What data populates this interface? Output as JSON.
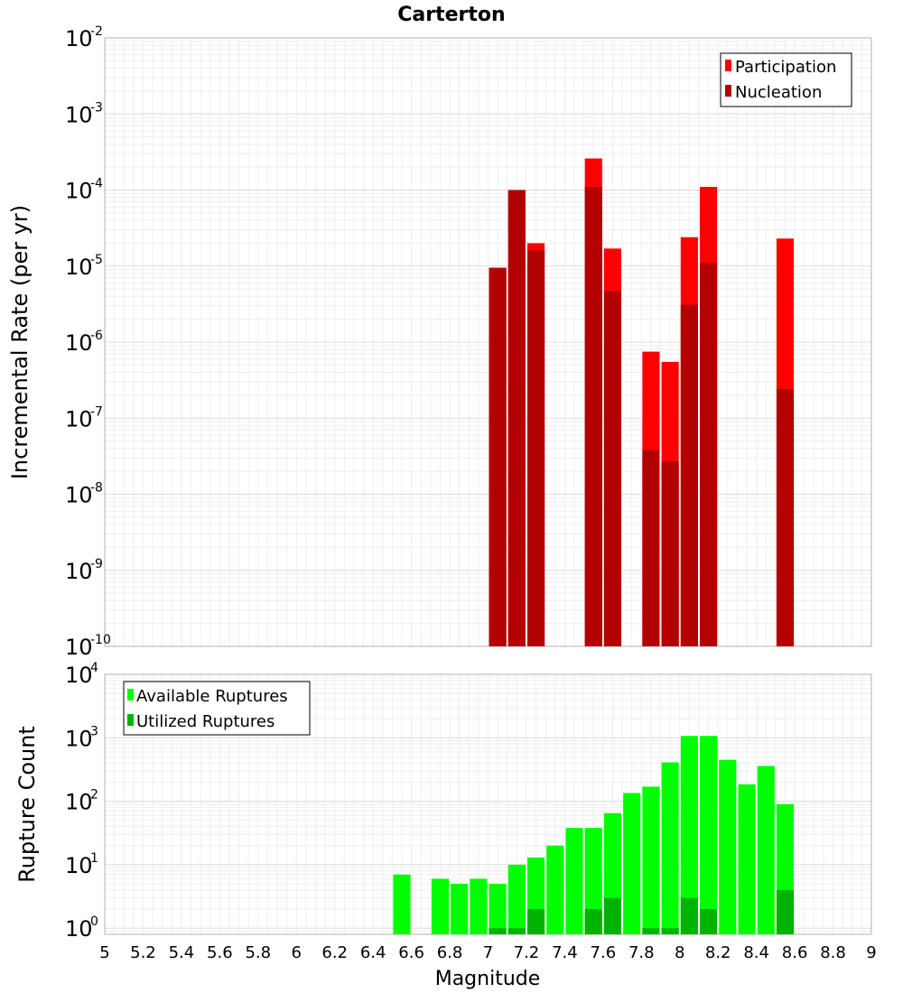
{
  "chart_data": [
    {
      "type": "bar",
      "title": "Carterton",
      "ylabel": "Incremental Rate (per yr)",
      "xlabel": "",
      "xlim": [
        5,
        9
      ],
      "ylim": [
        1e-10,
        0.01
      ],
      "yscale": "log",
      "grid": true,
      "legend_position": "top-right",
      "yticks": [
        {
          "base": "10",
          "exp": "-10",
          "value": 1e-10
        },
        {
          "base": "10",
          "exp": "-9",
          "value": 1e-09
        },
        {
          "base": "10",
          "exp": "-8",
          "value": 1e-08
        },
        {
          "base": "10",
          "exp": "-7",
          "value": 1e-07
        },
        {
          "base": "10",
          "exp": "-6",
          "value": 1e-06
        },
        {
          "base": "10",
          "exp": "-5",
          "value": 1e-05
        },
        {
          "base": "10",
          "exp": "-4",
          "value": 0.0001
        },
        {
          "base": "10",
          "exp": "-3",
          "value": 0.001
        },
        {
          "base": "10",
          "exp": "-2",
          "value": 0.01
        }
      ],
      "series": [
        {
          "name": "Participation",
          "color": "#ff0000",
          "points": [
            {
              "x": 7.05,
              "y": 9.5e-06
            },
            {
              "x": 7.15,
              "y": 0.0001
            },
            {
              "x": 7.25,
              "y": 2e-05
            },
            {
              "x": 7.55,
              "y": 0.00026
            },
            {
              "x": 7.65,
              "y": 1.7e-05
            },
            {
              "x": 7.85,
              "y": 7.5e-07
            },
            {
              "x": 7.95,
              "y": 5.5e-07
            },
            {
              "x": 8.05,
              "y": 2.4e-05
            },
            {
              "x": 8.15,
              "y": 0.00011
            },
            {
              "x": 8.55,
              "y": 2.3e-05
            }
          ]
        },
        {
          "name": "Nucleation",
          "color": "#b30000",
          "points": [
            {
              "x": 7.05,
              "y": 9.5e-06
            },
            {
              "x": 7.15,
              "y": 0.0001
            },
            {
              "x": 7.25,
              "y": 1.6e-05
            },
            {
              "x": 7.55,
              "y": 0.00011
            },
            {
              "x": 7.65,
              "y": 4.7e-06
            },
            {
              "x": 7.85,
              "y": 3.8e-08
            },
            {
              "x": 7.95,
              "y": 2.7e-08
            },
            {
              "x": 8.05,
              "y": 3.1e-06
            },
            {
              "x": 8.15,
              "y": 1.1e-05
            },
            {
              "x": 8.55,
              "y": 2.4e-07
            }
          ]
        }
      ]
    },
    {
      "type": "bar",
      "title": "",
      "ylabel": "Rupture Count",
      "xlabel": "Magnitude",
      "xlim": [
        5,
        9
      ],
      "ylim": [
        0.8,
        10000
      ],
      "yscale": "log",
      "grid": true,
      "legend_position": "top-left",
      "xticks": [
        "5",
        "5.2",
        "5.4",
        "5.6",
        "5.8",
        "6",
        "6.2",
        "6.4",
        "6.6",
        "6.8",
        "7",
        "7.2",
        "7.4",
        "7.6",
        "7.8",
        "8",
        "8.2",
        "8.4",
        "8.6",
        "8.8",
        "9"
      ],
      "yticks": [
        {
          "base": "10",
          "exp": "0",
          "value": 1
        },
        {
          "base": "10",
          "exp": "1",
          "value": 10
        },
        {
          "base": "10",
          "exp": "2",
          "value": 100
        },
        {
          "base": "10",
          "exp": "3",
          "value": 1000
        },
        {
          "base": "10",
          "exp": "4",
          "value": 10000
        }
      ],
      "series": [
        {
          "name": "Available Ruptures",
          "color": "#00ff00",
          "points": [
            {
              "x": 6.55,
              "y": 7
            },
            {
              "x": 6.75,
              "y": 6
            },
            {
              "x": 6.85,
              "y": 5
            },
            {
              "x": 6.95,
              "y": 6
            },
            {
              "x": 7.05,
              "y": 5
            },
            {
              "x": 7.15,
              "y": 10
            },
            {
              "x": 7.25,
              "y": 13
            },
            {
              "x": 7.35,
              "y": 20
            },
            {
              "x": 7.45,
              "y": 38
            },
            {
              "x": 7.55,
              "y": 38
            },
            {
              "x": 7.65,
              "y": 65
            },
            {
              "x": 7.75,
              "y": 135
            },
            {
              "x": 7.85,
              "y": 170
            },
            {
              "x": 7.95,
              "y": 410
            },
            {
              "x": 8.05,
              "y": 1070
            },
            {
              "x": 8.15,
              "y": 1070
            },
            {
              "x": 8.25,
              "y": 450
            },
            {
              "x": 8.35,
              "y": 185
            },
            {
              "x": 8.45,
              "y": 360
            },
            {
              "x": 8.55,
              "y": 90
            }
          ]
        },
        {
          "name": "Utilized Ruptures",
          "color": "#00b300",
          "points": [
            {
              "x": 7.05,
              "y": 1
            },
            {
              "x": 7.15,
              "y": 1
            },
            {
              "x": 7.25,
              "y": 2
            },
            {
              "x": 7.55,
              "y": 2
            },
            {
              "x": 7.65,
              "y": 3
            },
            {
              "x": 7.85,
              "y": 1
            },
            {
              "x": 7.95,
              "y": 1
            },
            {
              "x": 8.05,
              "y": 3
            },
            {
              "x": 8.15,
              "y": 2
            },
            {
              "x": 8.55,
              "y": 4
            }
          ]
        }
      ]
    }
  ]
}
